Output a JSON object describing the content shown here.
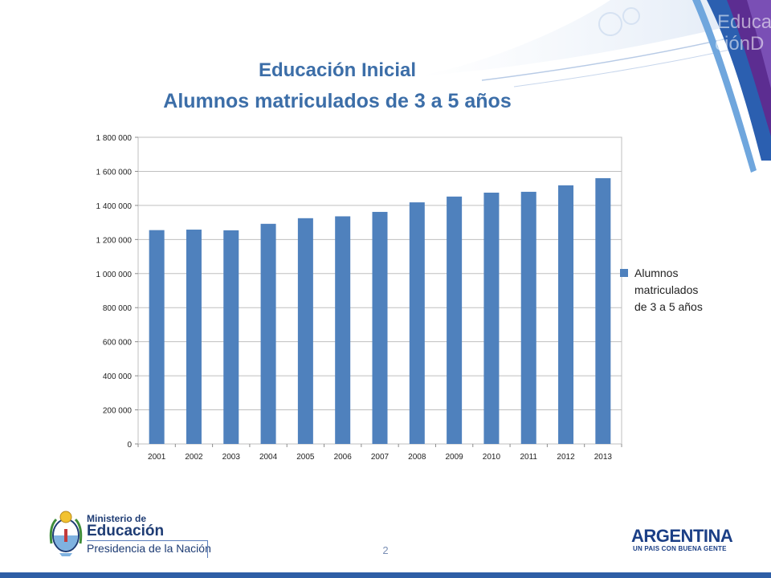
{
  "slide": {
    "title_line1": "Educación Inicial",
    "title_line2": "Alumnos matriculados de 3 a 5 años",
    "page_number": "2",
    "accent_color": "#3c6ea8"
  },
  "chart_data": {
    "type": "bar",
    "categories": [
      "2001",
      "2002",
      "2003",
      "2004",
      "2005",
      "2006",
      "2007",
      "2008",
      "2009",
      "2010",
      "2011",
      "2012",
      "2013"
    ],
    "series": [
      {
        "name": "Alumnos matriculados de 3 a 5 años",
        "values": [
          1255000,
          1258000,
          1254000,
          1292000,
          1325000,
          1336000,
          1362000,
          1418000,
          1452000,
          1475000,
          1480000,
          1518000,
          1560000
        ],
        "color": "#4f81bd"
      }
    ],
    "y_ticks": [
      "0",
      "200 000",
      "400 000",
      "600 000",
      "800 000",
      "1 000 000",
      "1 200 000",
      "1 400 000",
      "1 600 000",
      "1 800 000"
    ],
    "ylim": [
      0,
      1800000
    ],
    "grid": true,
    "legend_position": "right",
    "legend_lines": [
      "Alumnos",
      "matriculados",
      "de 3 a 5 años"
    ]
  },
  "branding": {
    "ministry_line1": "Ministerio de",
    "ministry_line2": "Educación",
    "ministry_line3": "Presidencia de la Nación",
    "country_word": "ARGENTINA",
    "country_slogan": "UN PAIS CON BUENA GENTE",
    "crest_icon": "national-coat-of-arms-icon",
    "brand_color": "#1b3f86"
  }
}
